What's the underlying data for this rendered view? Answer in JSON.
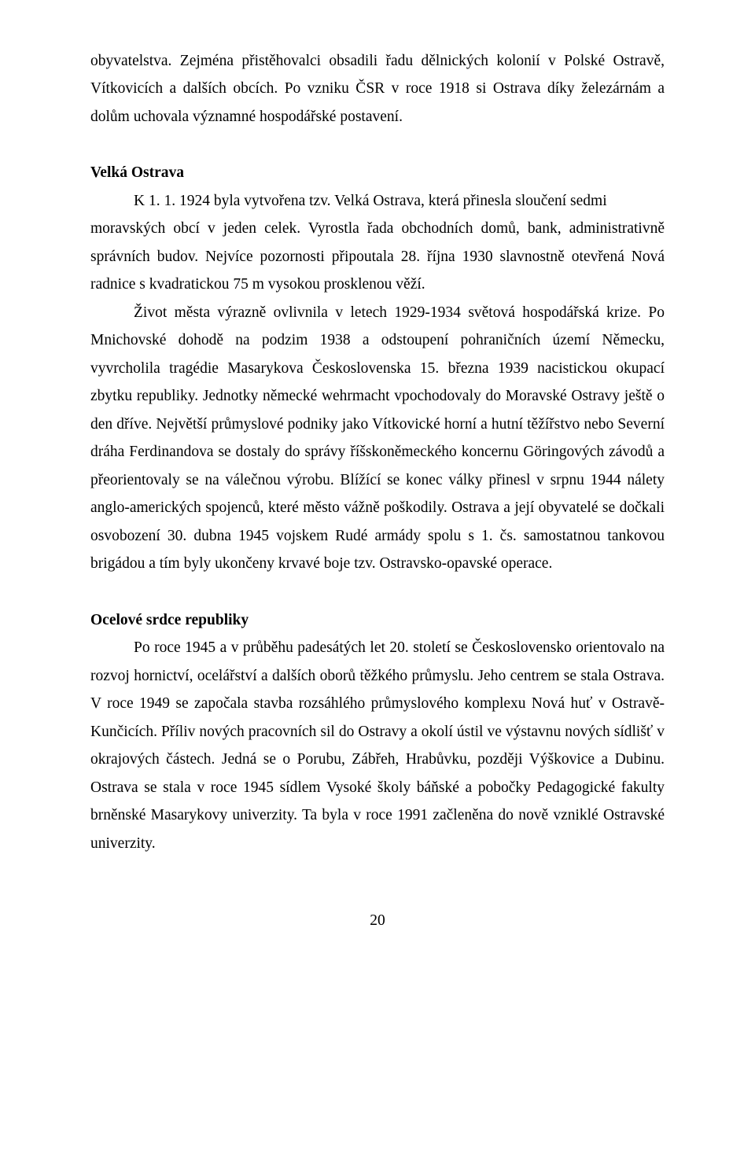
{
  "para1": "obyvatelstva. Zejména přistěhovalci obsadili řadu dělnických kolonií v Polské Ostravě, Vítkovicích a dalších obcích. Po vzniku ČSR v roce 1918 si Ostrava díky železárnám a dolům uchovala významné hospodářské postavení.",
  "heading1": "Velká Ostrava",
  "sub1": "K 1. 1. 1924 byla vytvořena tzv. Velká Ostrava, která přinesla sloučení sedmi",
  "para2": "moravských obcí v jeden celek. Vyrostla řada obchodních domů, bank, administrativně správních budov. Nejvíce pozornosti připoutala 28. října 1930 slavnostně otevřená Nová radnice s kvadratickou 75 m vysokou prosklenou věží.",
  "para3": "Život města výrazně ovlivnila v letech 1929-1934 světová hospodářská krize. Po Mnichovské dohodě na podzim 1938 a odstoupení pohraničních území Německu, vyvrcholila tragédie Masarykova Československa 15. března 1939 nacistickou okupací zbytku republiky. Jednotky německé wehrmacht vpochodovaly do Moravské Ostravy ještě o den dříve. Největší průmyslové podniky jako Vítkovické horní a hutní těžířstvo nebo Severní dráha Ferdinandova se dostaly do správy říšskoněmeckého koncernu Göringových závodů a přeorientovaly se na válečnou výrobu. Blížící se konec války přinesl v srpnu 1944 nálety anglo-amerických spojenců, které město vážně poškodily. Ostrava a její obyvatelé se dočkali osvobození 30. dubna 1945 vojskem Rudé armády spolu s 1. čs. samostatnou tankovou brigádou a tím byly ukončeny krvavé boje tzv. Ostravsko-opavské operace.",
  "heading2": "Ocelové srdce republiky",
  "para4": "Po roce 1945 a v průběhu padesátých let 20. století se Československo orientovalo na rozvoj hornictví, ocelářství a dalších oborů těžkého průmyslu. Jeho centrem se stala Ostrava. V roce 1949 se započala stavba rozsáhlého průmyslového komplexu Nová huť v Ostravě-Kunčicích. Příliv nových pracovních sil do Ostravy a okolí ústil  ve výstavnu nových sídlišť v okrajových částech. Jedná se o Porubu, Zábřeh, Hrabůvku, později Výškovice a Dubinu. Ostrava se stala v roce 1945 sídlem Vysoké školy báňské a pobočky Pedagogické fakulty brněnské Masarykovy univerzity. Ta byla v roce 1991 začleněna do nově vzniklé Ostravské univerzity.",
  "pagenum": "20"
}
